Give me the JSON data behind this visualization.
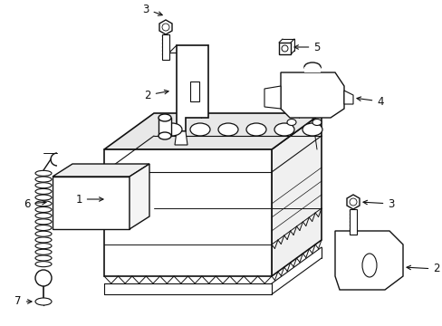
{
  "background_color": "#ffffff",
  "line_color": "#111111",
  "figsize": [
    4.89,
    3.6
  ],
  "dpi": 100
}
